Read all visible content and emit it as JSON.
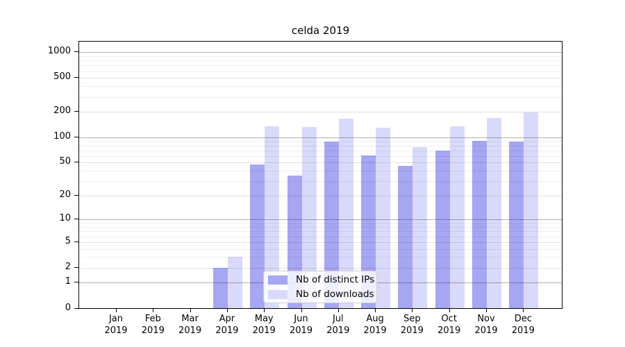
{
  "title": "celda 2019",
  "chart_data": {
    "type": "bar",
    "title": "celda 2019",
    "x_months": [
      "Jan",
      "Feb",
      "Mar",
      "Apr",
      "May",
      "Jun",
      "Jul",
      "Aug",
      "Sep",
      "Oct",
      "Nov",
      "Dec"
    ],
    "x_year": "2019",
    "series": [
      {
        "name": "Nb of distinct IPs",
        "color": "#a6a6f2",
        "values": [
          0,
          0,
          0,
          2,
          48,
          35,
          90,
          61,
          46,
          70,
          91,
          90
        ]
      },
      {
        "name": "Nb of downloads",
        "color": "#d9d9fa",
        "values": [
          0,
          0,
          0,
          3,
          135,
          132,
          166,
          130,
          77,
          135,
          170,
          197
        ]
      }
    ],
    "y_axis": {
      "scale": "log1p",
      "ylim": [
        0,
        1000
      ],
      "major_ticks": [
        0,
        1,
        2,
        5,
        10,
        20,
        50,
        100,
        200,
        500,
        1000
      ],
      "minor_ticks": [
        3,
        4,
        6,
        7,
        8,
        9,
        30,
        40,
        60,
        70,
        80,
        90,
        300,
        400,
        600,
        700,
        800,
        900
      ],
      "grid": true
    },
    "legend_position": "bottom-center"
  }
}
